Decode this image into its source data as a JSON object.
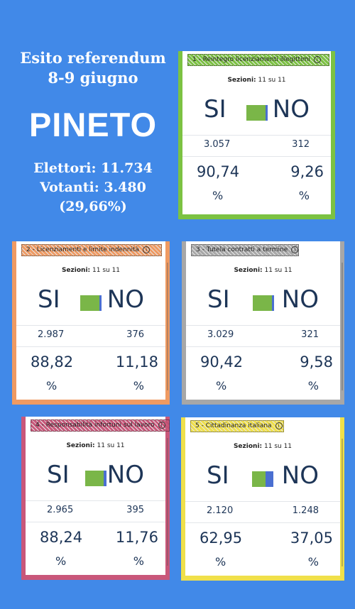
{
  "header": {
    "title_line1": "Esito referendum",
    "title_line2": "8-9 giugno",
    "town": "PINETO",
    "elettori": "Elettori: 11.734",
    "votanti": "Votanti: 3.480",
    "affluenza": "(29,66%)"
  },
  "yes_label": "SI",
  "no_label": "NO",
  "sections_label": "Sezioni:",
  "percent_symbol": "%",
  "info_glyph": "i",
  "colors": {
    "background": "#4189e8",
    "yes_green": "#7ab648",
    "no_blue": "#4a6fd1"
  },
  "cards": [
    {
      "title": "1 - Reintegro licenziamenti illegittimi",
      "sections": "11 su 11",
      "yes_votes": "3.057",
      "no_votes": "312",
      "yes_pct": "90,74",
      "no_pct": "9,26",
      "border_color": "#7cc242",
      "yes_share": 0.9074
    },
    {
      "title": "2 - Licenziamenti e limite indennità",
      "sections": "11 su 11",
      "yes_votes": "2.987",
      "no_votes": "376",
      "yes_pct": "88,82",
      "no_pct": "11,18",
      "border_color": "#ef9a62",
      "yes_share": 0.8882
    },
    {
      "title": "3 - Tutela contratti a termine",
      "sections": "11 su 11",
      "yes_votes": "3.029",
      "no_votes": "321",
      "yes_pct": "90,42",
      "no_pct": "9,58",
      "border_color": "#a7a7a7",
      "yes_share": 0.9042
    },
    {
      "title": "4 - Responsabilità infortuni sul lavoro",
      "sections": "11 su 11",
      "yes_votes": "2.965",
      "no_votes": "395",
      "yes_pct": "88,24",
      "no_pct": "11,76",
      "border_color": "#c9577a",
      "yes_share": 0.8824
    },
    {
      "title": "5 - Cittadinanza italiana",
      "sections": "11 su 11",
      "yes_votes": "2.120",
      "no_votes": "1.248",
      "yes_pct": "62,95",
      "no_pct": "37,05",
      "border_color": "#f0e04a",
      "yes_share": 0.6295
    }
  ]
}
